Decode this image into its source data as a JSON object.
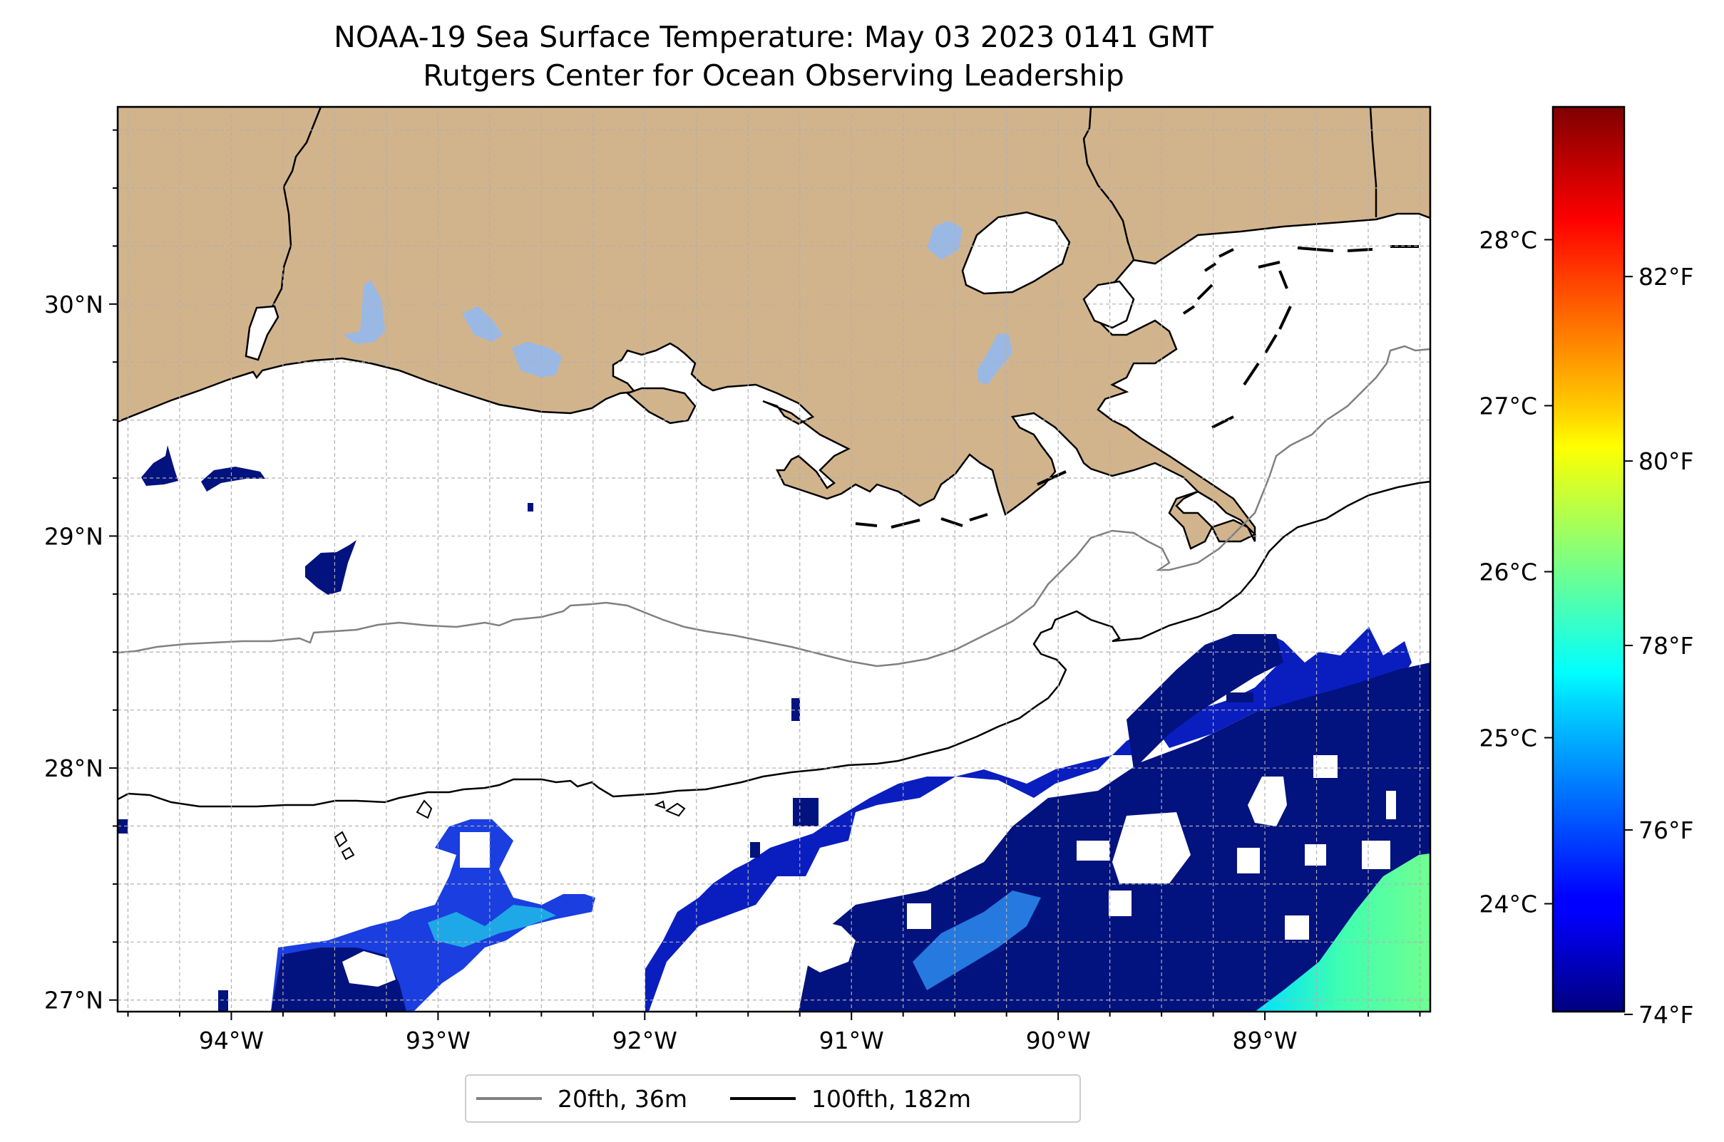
{
  "title": {
    "line1": "NOAA-19 Sea Surface Temperature: May 03 2023 0141 GMT",
    "line2": "Rutgers Center for Ocean Observing Leadership"
  },
  "map": {
    "lon_range": [
      -94.55,
      -88.2
    ],
    "lat_range": [
      26.95,
      30.85
    ],
    "lon_ticks": [
      {
        "value": -94,
        "label": "94°W"
      },
      {
        "value": -93,
        "label": "93°W"
      },
      {
        "value": -92,
        "label": "92°W"
      },
      {
        "value": -91,
        "label": "91°W"
      },
      {
        "value": -90,
        "label": "90°W"
      },
      {
        "value": -89,
        "label": "89°W"
      }
    ],
    "lat_ticks": [
      {
        "value": 27,
        "label": "27°N"
      },
      {
        "value": 28,
        "label": "28°N"
      },
      {
        "value": 29,
        "label": "29°N"
      },
      {
        "value": 30,
        "label": "30°N"
      }
    ],
    "grid": "dashed",
    "colors": {
      "land": "#d2b48c",
      "lakes": "#9ab8e4",
      "no_data": "#ffffff",
      "isobath_20": "#808080",
      "isobath_100": "#000000"
    }
  },
  "legend": {
    "placement": "bottom-center",
    "items": [
      {
        "label": "20fth, 36m",
        "color": "#808080"
      },
      {
        "label": "100fth, 182m",
        "color": "#000000"
      }
    ]
  },
  "colorbar": {
    "colormap": "jet",
    "range_c": [
      23.35,
      28.8
    ],
    "celsius_ticks": [
      {
        "value": 24,
        "label": "24°C"
      },
      {
        "value": 25,
        "label": "25°C"
      },
      {
        "value": 26,
        "label": "26°C"
      },
      {
        "value": 27,
        "label": "27°C"
      },
      {
        "value": 28,
        "label": "28°C"
      }
    ],
    "fahrenheit_ticks": [
      {
        "value": 74,
        "label": "74°F"
      },
      {
        "value": 76,
        "label": "76°F"
      },
      {
        "value": 78,
        "label": "78°F"
      },
      {
        "value": 80,
        "label": "80°F"
      },
      {
        "value": 82,
        "label": "82°F"
      }
    ]
  }
}
